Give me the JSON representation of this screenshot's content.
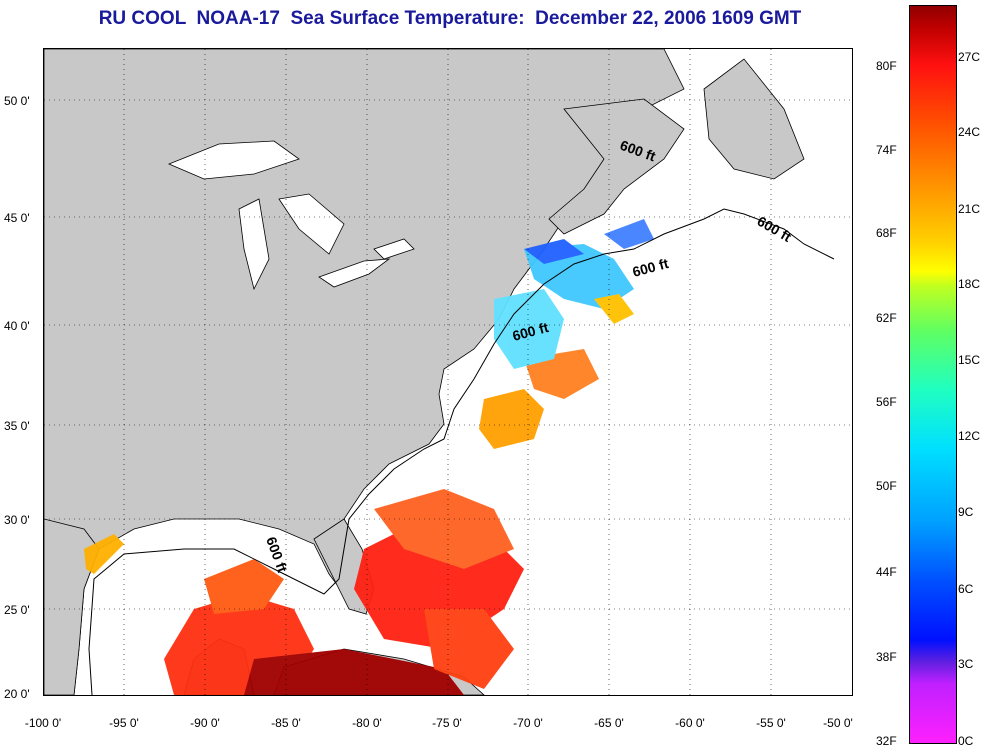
{
  "title": "RU COOL  NOAA-17  Sea Surface Temperature:  December 22, 2006 1609 GMT",
  "map": {
    "lon_range": [
      -100,
      -50
    ],
    "lat_range": [
      20,
      52
    ],
    "grid": "dotted",
    "land_color": "#c8c8c8",
    "no_data_color": "#ffffff",
    "contour_label": "600 ft",
    "x_ticks": [
      "-100 0'",
      "-95 0'",
      "-90 0'",
      "-85 0'",
      "-80 0'",
      "-75 0'",
      "-70 0'",
      "-65 0'",
      "-60 0'",
      "-55 0'",
      "-50 0'"
    ],
    "y_ticks": [
      "50 0'",
      "45 0'",
      "40 0'",
      "35 0'",
      "30 0'",
      "25 0'",
      "20 0'"
    ]
  },
  "colorbar": {
    "fahrenheit": [
      "80F",
      "74F",
      "68F",
      "62F",
      "56F",
      "50F",
      "44F",
      "38F",
      "32F"
    ],
    "celsius": [
      "27C",
      "24C",
      "21C",
      "18C",
      "15C",
      "12C",
      "9C",
      "6C",
      "3C",
      "0C"
    ],
    "colors": [
      "#ff20ff",
      "#6020e0",
      "#0010ff",
      "#00a0ff",
      "#00e0ff",
      "#60ff60",
      "#ffff00",
      "#ff9000",
      "#ff1010",
      "#900000"
    ]
  }
}
